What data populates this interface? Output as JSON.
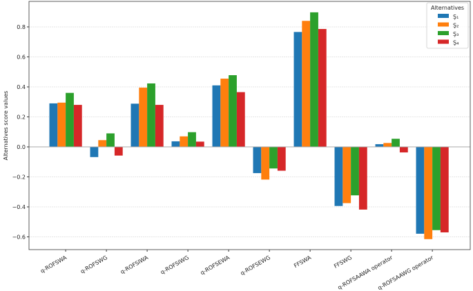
{
  "chart_data": {
    "type": "bar",
    "title": "",
    "xlabel": "",
    "ylabel": "Alternatives score values",
    "ylim": [
      -0.685,
      0.97
    ],
    "yticks": [
      -0.6,
      -0.4,
      -0.2,
      0.0,
      0.2,
      0.4,
      0.6,
      0.8
    ],
    "grid": true,
    "legend": {
      "title": "Alternatives",
      "placement": "top-right"
    },
    "categories": [
      "q-ROFSWA",
      "q-ROFSWG",
      "q-ROFSIWA",
      "q-ROFSIWG",
      "q-ROFSEWA",
      "q-ROFSEWG",
      "FFSWA",
      "FFSWG",
      "q-ROFSAAWA operator",
      "q-ROFSAAWG operator"
    ],
    "series": [
      {
        "name": "Ş₁",
        "color": "#1f77b4",
        "values": [
          0.29,
          -0.068,
          0.288,
          0.037,
          0.41,
          -0.175,
          0.766,
          -0.394,
          0.018,
          -0.579
        ]
      },
      {
        "name": "Ş₂",
        "color": "#ff7f0e",
        "values": [
          0.295,
          0.045,
          0.395,
          0.07,
          0.455,
          -0.218,
          0.84,
          -0.375,
          0.026,
          -0.615
        ]
      },
      {
        "name": "Ş₃",
        "color": "#2ca02c",
        "values": [
          0.36,
          0.09,
          0.423,
          0.098,
          0.478,
          -0.144,
          0.897,
          -0.323,
          0.054,
          -0.555
        ]
      },
      {
        "name": "Ş₄",
        "color": "#d62728",
        "values": [
          0.28,
          -0.058,
          0.28,
          0.035,
          0.365,
          -0.159,
          0.786,
          -0.418,
          -0.037,
          -0.57
        ]
      }
    ]
  }
}
